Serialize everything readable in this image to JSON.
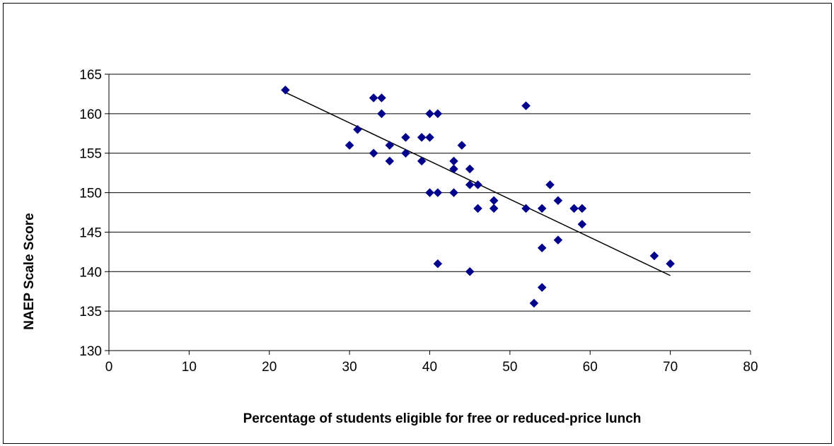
{
  "chart_data": {
    "type": "scatter",
    "title": "",
    "xlabel": "Percentage of students eligible for free or reduced-price lunch",
    "ylabel": "NAEP Scale Score",
    "xlim": [
      0,
      80
    ],
    "ylim": [
      130,
      165
    ],
    "x_ticks": [
      0,
      10,
      20,
      30,
      40,
      50,
      60,
      70,
      80
    ],
    "y_ticks": [
      130,
      135,
      140,
      145,
      150,
      155,
      160,
      165
    ],
    "grid": "horizontal major gridlines",
    "legend": "none",
    "marker_color": "#00008B",
    "marker_shape": "diamond",
    "points": [
      [
        22,
        163
      ],
      [
        30,
        156
      ],
      [
        31,
        158
      ],
      [
        33,
        162
      ],
      [
        33,
        155
      ],
      [
        34,
        162
      ],
      [
        34,
        160
      ],
      [
        35,
        156
      ],
      [
        35,
        154
      ],
      [
        37,
        157
      ],
      [
        37,
        155
      ],
      [
        39,
        157
      ],
      [
        39,
        154
      ],
      [
        40,
        160
      ],
      [
        40,
        157
      ],
      [
        40,
        150
      ],
      [
        41,
        160
      ],
      [
        41,
        150
      ],
      [
        41,
        141
      ],
      [
        43,
        154
      ],
      [
        43,
        153
      ],
      [
        43,
        150
      ],
      [
        44,
        156
      ],
      [
        45,
        153
      ],
      [
        45,
        151
      ],
      [
        45,
        140
      ],
      [
        46,
        151
      ],
      [
        46,
        148
      ],
      [
        48,
        149
      ],
      [
        48,
        148
      ],
      [
        52,
        161
      ],
      [
        52,
        148
      ],
      [
        53,
        136
      ],
      [
        54,
        148
      ],
      [
        54,
        143
      ],
      [
        54,
        138
      ],
      [
        55,
        151
      ],
      [
        56,
        149
      ],
      [
        56,
        144
      ],
      [
        58,
        148
      ],
      [
        59,
        148
      ],
      [
        59,
        146
      ],
      [
        68,
        142
      ],
      [
        70,
        141
      ]
    ],
    "trendline": {
      "type": "linear",
      "from": [
        22,
        162.7
      ],
      "to": [
        70,
        139.5
      ],
      "color": "#000000"
    }
  }
}
